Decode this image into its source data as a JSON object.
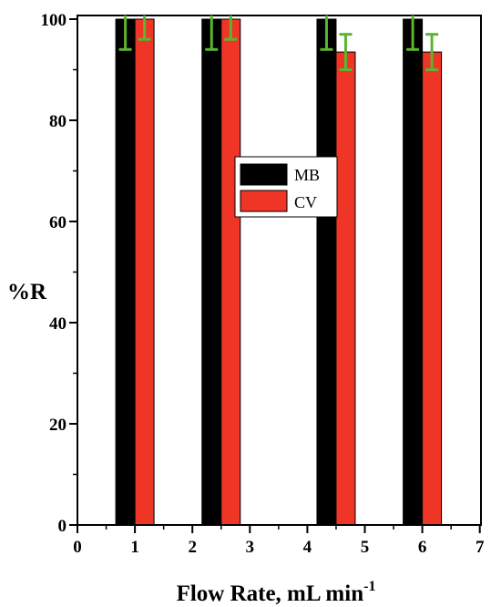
{
  "chart_data": {
    "type": "bar",
    "title": "",
    "xlabel": "Flow Rate, mL min",
    "xlabel_superscript": "-1",
    "ylabel": "%R",
    "xlim": [
      0,
      7
    ],
    "ylim": [
      0,
      100
    ],
    "x_ticks": [
      "0",
      "1",
      "2",
      "3",
      "4",
      "5",
      "6",
      "7"
    ],
    "y_ticks": [
      "0",
      "20",
      "40",
      "60",
      "80",
      "100"
    ],
    "legend_position": "center",
    "error_bar_color": "#5cb531",
    "groups": [
      {
        "x": 1.0,
        "MB": 100,
        "MB_err": 6,
        "CV": 100,
        "CV_err": 4
      },
      {
        "x": 2.5,
        "MB": 100,
        "MB_err": 6,
        "CV": 100,
        "CV_err": 4
      },
      {
        "x": 4.5,
        "MB": 100,
        "MB_err": 6,
        "CV": 93.5,
        "CV_err": 3.5
      },
      {
        "x": 6.0,
        "MB": 100,
        "MB_err": 6,
        "CV": 93.5,
        "CV_err": 3.5
      }
    ],
    "series": [
      {
        "name": "MB",
        "color": "#000000"
      },
      {
        "name": "CV",
        "color": "#ef3526"
      }
    ]
  }
}
